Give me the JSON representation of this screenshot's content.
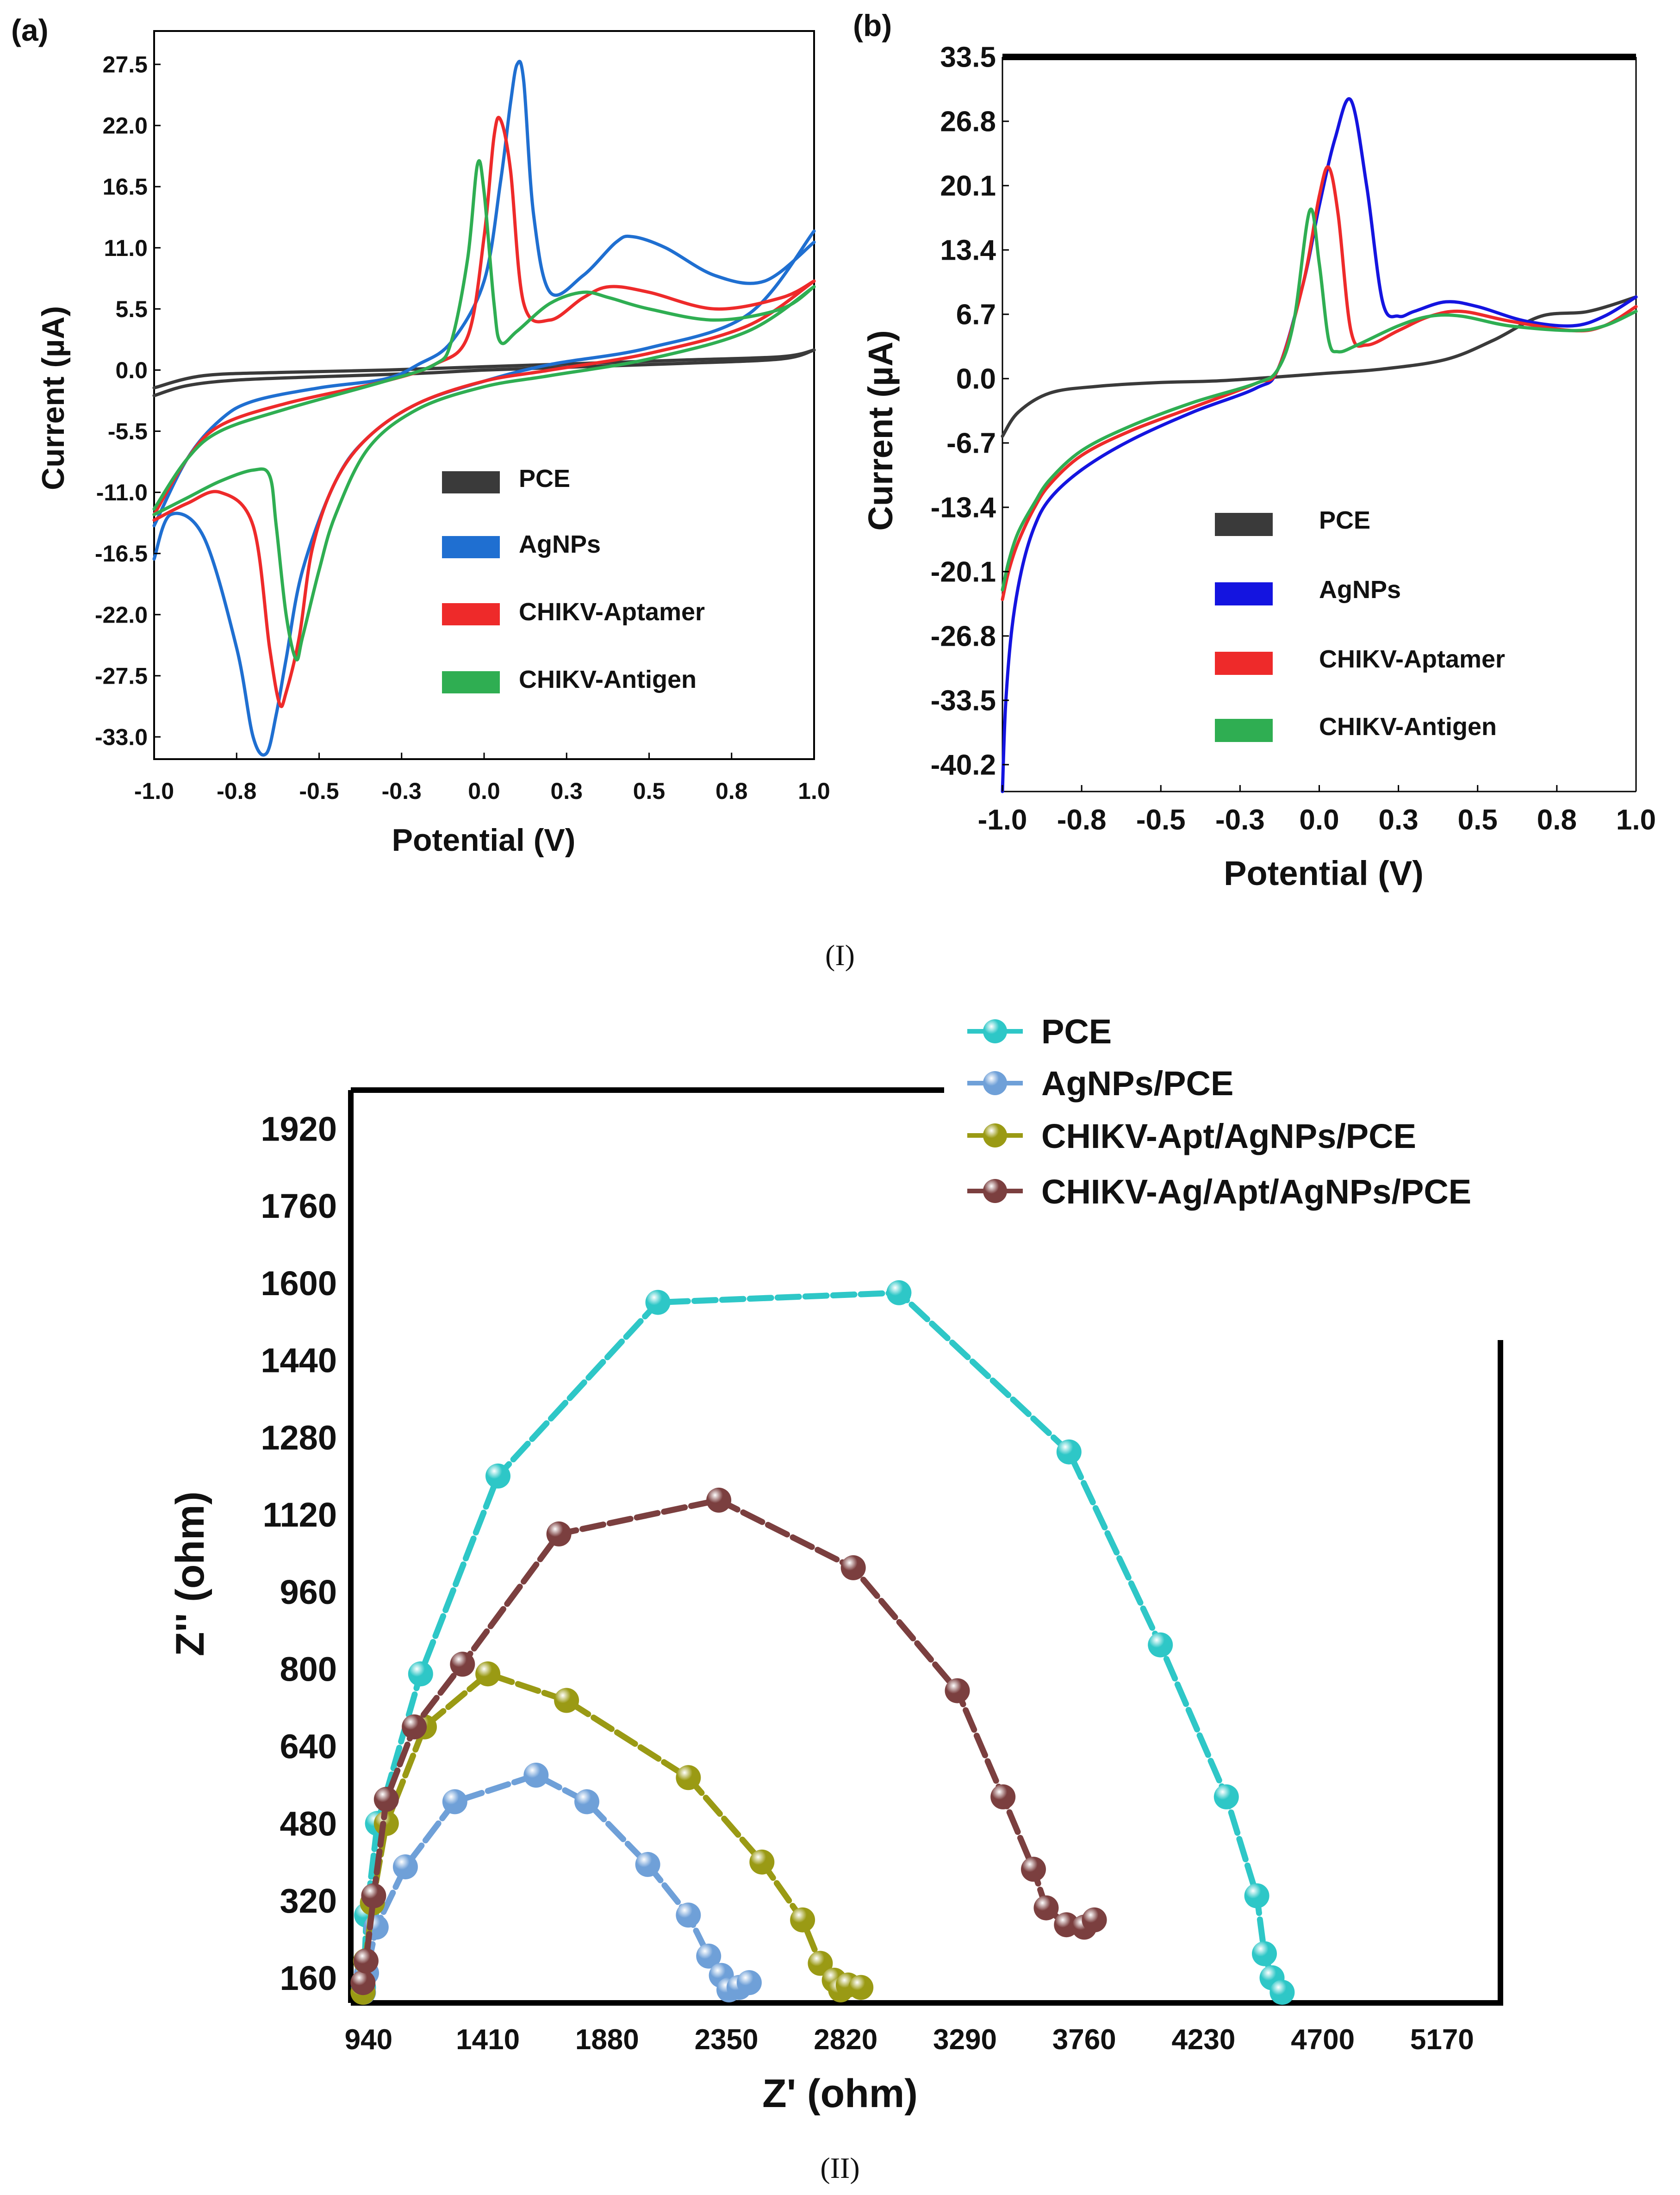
{
  "captions": {
    "top": "(I)",
    "bottom": "(II)"
  },
  "chart_data": [
    {
      "panel": "(a)",
      "type": "line",
      "xlabel": "Potential (V)",
      "ylabel": "Current (µA)",
      "xlim": [
        -1.0,
        1.0
      ],
      "ylim": [
        -35.0,
        30.5
      ],
      "xticks": [
        "-1.0",
        "-0.8",
        "-0.5",
        "-0.3",
        "0.0",
        "0.3",
        "0.5",
        "0.8",
        "1.0"
      ],
      "yticks": [
        "27.5",
        "22.0",
        "16.5",
        "11.0",
        "5.5",
        "0.0",
        "-5.5",
        "-11.0",
        "-16.5",
        "-22.0",
        "-27.5",
        "-33.0"
      ],
      "legend": [
        "PCE",
        "AgNPs",
        "CHIKV-Aptamer",
        "CHIKV-Antigen"
      ],
      "series": [
        {
          "name": "PCE",
          "color": "#3a3a3a",
          "loops": [
            {
              "x": [
                -1.0,
                -0.9,
                -0.75,
                -0.5,
                -0.2,
                0.0,
                0.3,
                0.6,
                0.9,
                1.0
              ],
              "y": [
                -2.3,
                -1.4,
                -0.9,
                -0.6,
                -0.3,
                0.0,
                0.3,
                0.6,
                1.0,
                1.8
              ]
            },
            {
              "x": [
                1.0,
                0.9,
                0.6,
                0.3,
                0.0,
                -0.3,
                -0.6,
                -0.85,
                -1.0
              ],
              "y": [
                1.8,
                1.2,
                0.9,
                0.6,
                0.3,
                0.0,
                -0.2,
                -0.5,
                -1.6
              ]
            }
          ]
        },
        {
          "name": "AgNPs",
          "color": "#1f6fd1",
          "loops": [
            {
              "x": [
                -1.0,
                -0.9,
                -0.8,
                -0.7,
                -0.5,
                -0.3,
                -0.2,
                -0.1,
                0.0,
                0.05,
                0.08,
                0.1,
                0.12,
                0.15,
                0.2,
                0.3,
                0.4,
                0.45,
                0.55,
                0.7,
                0.85,
                1.0
              ],
              "y": [
                -14.0,
                -8.0,
                -4.5,
                -2.8,
                -1.6,
                -0.8,
                0.5,
                2.5,
                8.0,
                17.0,
                24.0,
                27.5,
                26.0,
                14.0,
                7.0,
                8.5,
                11.5,
                12.0,
                11.0,
                8.5,
                8.0,
                11.5
              ]
            },
            {
              "x": [
                1.0,
                0.8,
                0.5,
                0.2,
                0.0,
                -0.2,
                -0.35,
                -0.45,
                -0.55,
                -0.6,
                -0.63,
                -0.66,
                -0.7,
                -0.75,
                -0.85,
                -0.95,
                -1.0
              ],
              "y": [
                12.5,
                5.0,
                2.0,
                0.5,
                -1.0,
                -3.0,
                -6.0,
                -10.0,
                -18.0,
                -26.0,
                -31.0,
                -34.5,
                -33.0,
                -25.0,
                -15.0,
                -13.0,
                -17.0
              ]
            }
          ]
        },
        {
          "name": "CHIKV-Aptamer",
          "color": "#ee2a2a",
          "loops": [
            {
              "x": [
                -1.0,
                -0.9,
                -0.8,
                -0.6,
                -0.3,
                -0.15,
                -0.05,
                0.0,
                0.03,
                0.05,
                0.08,
                0.12,
                0.2,
                0.3,
                0.38,
                0.5,
                0.7,
                0.9,
                1.0
              ],
              "y": [
                -13.0,
                -8.0,
                -5.0,
                -3.0,
                -1.0,
                0.5,
                3.0,
                12.0,
                21.0,
                22.5,
                18.0,
                6.0,
                4.5,
                6.5,
                7.5,
                7.0,
                5.5,
                6.5,
                8.0
              ]
            },
            {
              "x": [
                1.0,
                0.8,
                0.5,
                0.2,
                0.0,
                -0.2,
                -0.35,
                -0.45,
                -0.52,
                -0.56,
                -0.6,
                -0.62,
                -0.65,
                -0.7,
                -0.8,
                -0.9,
                -1.0
              ],
              "y": [
                8.0,
                4.0,
                1.5,
                0.0,
                -1.0,
                -3.0,
                -6.0,
                -10.0,
                -16.0,
                -24.0,
                -29.0,
                -30.0,
                -25.0,
                -14.0,
                -11.0,
                -12.0,
                -13.5
              ]
            }
          ]
        },
        {
          "name": "CHIKV-Antigen",
          "color": "#2fae52",
          "loops": [
            {
              "x": [
                -1.0,
                -0.9,
                -0.8,
                -0.6,
                -0.3,
                -0.15,
                -0.1,
                -0.05,
                -0.02,
                0.0,
                0.03,
                0.05,
                0.1,
                0.2,
                0.3,
                0.38,
                0.5,
                0.7,
                0.9,
                1.0
              ],
              "y": [
                -12.5,
                -8.0,
                -5.5,
                -3.5,
                -1.0,
                0.5,
                2.5,
                10.0,
                18.5,
                16.0,
                6.0,
                2.5,
                3.5,
                6.0,
                7.0,
                6.5,
                5.5,
                4.5,
                5.5,
                7.5
              ]
            },
            {
              "x": [
                1.0,
                0.8,
                0.5,
                0.2,
                0.0,
                -0.2,
                -0.35,
                -0.45,
                -0.5,
                -0.55,
                -0.57,
                -0.6,
                -0.63,
                -0.65,
                -0.7,
                -0.8,
                -0.9,
                -1.0
              ],
              "y": [
                7.5,
                3.5,
                1.0,
                -0.5,
                -1.5,
                -3.5,
                -7.0,
                -13.0,
                -18.0,
                -24.0,
                -26.0,
                -22.0,
                -14.0,
                -9.5,
                -9.0,
                -10.0,
                -11.5,
                -13.0
              ]
            }
          ]
        }
      ]
    },
    {
      "panel": "(b)",
      "type": "line",
      "xlabel": "Potential (V)",
      "ylabel": "Current (µA)",
      "xlim": [
        -1.0,
        1.0
      ],
      "ylim": [
        -43.0,
        33.5
      ],
      "xticks": [
        "-1.0",
        "-0.8",
        "-0.5",
        "-0.3",
        "0.0",
        "0.3",
        "0.5",
        "0.8",
        "1.0"
      ],
      "yticks": [
        "33.5",
        "26.8",
        "20.1",
        "13.4",
        "6.7",
        "0.0",
        "-6.7",
        "-13.4",
        "-20.1",
        "-26.8",
        "-33.5",
        "-40.2"
      ],
      "legend": [
        "PCE",
        "AgNPs",
        "CHIKV-Aptamer",
        "CHIKV-Antigen"
      ],
      "series": [
        {
          "name": "PCE",
          "color": "#3a3a3a",
          "loops": [
            {
              "x": [
                -1.0,
                -0.95,
                -0.85,
                -0.7,
                -0.5,
                -0.3,
                0.0,
                0.2,
                0.4,
                0.55,
                0.7,
                0.85,
                1.0
              ],
              "y": [
                -6.0,
                -3.5,
                -1.5,
                -0.8,
                -0.4,
                -0.2,
                0.5,
                1.0,
                2.0,
                4.0,
                6.5,
                7.0,
                8.5
              ]
            }
          ]
        },
        {
          "name": "AgNPs",
          "color": "#1414e0",
          "loops": [
            {
              "x": [
                -1.0,
                -0.99,
                -0.97,
                -0.94,
                -0.9,
                -0.85,
                -0.75,
                -0.6,
                -0.4,
                -0.2,
                -0.13,
                -0.05,
                0.0,
                0.05,
                0.1,
                0.15,
                0.2,
                0.25,
                0.3,
                0.4,
                0.5,
                0.65,
                0.8,
                0.9,
                1.0
              ],
              "y": [
                -43.0,
                -34.0,
                -26.0,
                -20.0,
                -15.5,
                -12.5,
                -9.5,
                -6.5,
                -3.5,
                -1.0,
                1.0,
                10.0,
                18.0,
                25.0,
                29.0,
                20.0,
                8.0,
                6.5,
                7.0,
                8.0,
                7.5,
                6.0,
                5.5,
                6.5,
                8.5
              ]
            }
          ]
        },
        {
          "name": "CHIKV-Aptamer",
          "color": "#ee2a2a",
          "loops": [
            {
              "x": [
                -1.0,
                -0.98,
                -0.95,
                -0.9,
                -0.85,
                -0.75,
                -0.6,
                -0.4,
                -0.2,
                -0.13,
                -0.05,
                0.0,
                0.03,
                0.06,
                0.1,
                0.15,
                0.25,
                0.35,
                0.45,
                0.6,
                0.8,
                0.9,
                1.0
              ],
              "y": [
                -23.0,
                -20.0,
                -17.0,
                -13.5,
                -11.0,
                -8.0,
                -5.5,
                -3.0,
                -0.5,
                1.0,
                10.0,
                19.0,
                22.0,
                17.0,
                5.0,
                3.5,
                5.0,
                6.5,
                7.0,
                6.0,
                5.0,
                5.5,
                7.5
              ]
            }
          ]
        },
        {
          "name": "CHIKV-Antigen",
          "color": "#2fae52",
          "loops": [
            {
              "x": [
                -1.0,
                -0.98,
                -0.95,
                -0.9,
                -0.85,
                -0.75,
                -0.6,
                -0.4,
                -0.2,
                -0.13,
                -0.08,
                -0.03,
                0.0,
                0.03,
                0.06,
                0.12,
                0.25,
                0.35,
                0.45,
                0.6,
                0.8,
                0.9,
                1.0
              ],
              "y": [
                -22.0,
                -19.0,
                -16.0,
                -13.0,
                -10.5,
                -7.5,
                -5.0,
                -2.5,
                -0.5,
                1.0,
                6.0,
                17.5,
                12.0,
                4.0,
                2.8,
                3.5,
                5.5,
                6.5,
                6.5,
                5.5,
                5.0,
                5.5,
                7.0
              ]
            }
          ]
        }
      ]
    },
    {
      "panel": "(II)",
      "type": "line",
      "xlabel": "Z' (ohm)",
      "ylabel": "Z'' (ohm)",
      "xlim": [
        870,
        5400
      ],
      "ylim": [
        108,
        2000
      ],
      "xticks": [
        "940",
        "1410",
        "1880",
        "2350",
        "2820",
        "3290",
        "3760",
        "4230",
        "4700",
        "5170"
      ],
      "yticks": [
        "1920",
        "1760",
        "1600",
        "1440",
        "1280",
        "1120",
        "960",
        "800",
        "640",
        "480",
        "320",
        "160"
      ],
      "legend": [
        "PCE",
        "AgNPs/PCE",
        "CHIKV-Apt/AgNPs/PCE",
        "CHIKV-Ag/Apt/AgNPs/PCE"
      ],
      "series": [
        {
          "name": "PCE",
          "color": "#2ec7c7",
          "x": [
            920,
            932,
            975,
            1145,
            1450,
            2080,
            3030,
            3700,
            4060,
            4320,
            4440,
            4470,
            4500,
            4540
          ],
          "y": [
            140,
            290,
            480,
            790,
            1200,
            1560,
            1580,
            1250,
            850,
            535,
            330,
            210,
            160,
            130
          ]
        },
        {
          "name": "AgNPs/PCE",
          "color": "#6fa0d8",
          "x": [
            920,
            932,
            970,
            1085,
            1280,
            1600,
            1800,
            2040,
            2200,
            2280,
            2330,
            2360,
            2400,
            2440
          ],
          "y": [
            130,
            170,
            265,
            390,
            525,
            580,
            525,
            395,
            290,
            205,
            165,
            135,
            140,
            150
          ]
        },
        {
          "name": "CHIKV-Apt/AgNPs/PCE",
          "color": "#9a9a14",
          "x": [
            918,
            928,
            955,
            1010,
            1160,
            1410,
            1720,
            2200,
            2490,
            2650,
            2720,
            2775,
            2800,
            2830,
            2880
          ],
          "y": [
            130,
            195,
            315,
            480,
            680,
            790,
            735,
            575,
            400,
            280,
            190,
            155,
            135,
            145,
            140
          ]
        },
        {
          "name": "CHIKV-Ag/Apt/AgNPs/PCE",
          "color": "#7b3f3f",
          "x": [
            918,
            930,
            960,
            1010,
            1120,
            1310,
            1690,
            2320,
            2850,
            3260,
            3440,
            3560,
            3610,
            3690,
            3760,
            3800
          ],
          "y": [
            150,
            195,
            330,
            530,
            680,
            810,
            1080,
            1150,
            1010,
            755,
            535,
            385,
            305,
            270,
            265,
            280
          ]
        }
      ]
    }
  ]
}
